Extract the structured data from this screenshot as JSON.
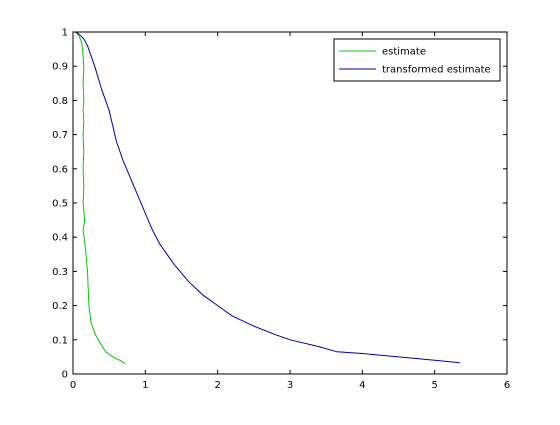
{
  "chart_data": {
    "type": "line",
    "title": "",
    "xlabel": "",
    "ylabel": "",
    "xlim": [
      0,
      6
    ],
    "ylim": [
      0,
      1
    ],
    "x_ticks": [
      0,
      1,
      2,
      3,
      4,
      5,
      6
    ],
    "x_tick_labels": [
      "0",
      "1",
      "2",
      "3",
      "4",
      "5",
      "6"
    ],
    "y_ticks": [
      0,
      0.1,
      0.2,
      0.3,
      0.4,
      0.5,
      0.6,
      0.7,
      0.8,
      0.9,
      1
    ],
    "y_tick_labels": [
      "0",
      "0.1",
      "0.2",
      "0.3",
      "0.4",
      "0.5",
      "0.6",
      "0.7",
      "0.8",
      "0.9",
      "1"
    ],
    "grid": false,
    "legend_position": "top-right",
    "series": [
      {
        "name": "estimate",
        "color": "#00cc00",
        "points": [
          [
            0.03,
            1.0
          ],
          [
            0.08,
            0.99
          ],
          [
            0.12,
            0.97
          ],
          [
            0.14,
            0.93
          ],
          [
            0.15,
            0.9
          ],
          [
            0.14,
            0.85
          ],
          [
            0.15,
            0.8
          ],
          [
            0.14,
            0.77
          ],
          [
            0.15,
            0.74
          ],
          [
            0.14,
            0.7
          ],
          [
            0.15,
            0.65
          ],
          [
            0.14,
            0.6
          ],
          [
            0.15,
            0.55
          ],
          [
            0.14,
            0.5
          ],
          [
            0.16,
            0.45
          ],
          [
            0.14,
            0.42
          ],
          [
            0.16,
            0.39
          ],
          [
            0.17,
            0.37
          ],
          [
            0.18,
            0.35
          ],
          [
            0.2,
            0.3
          ],
          [
            0.21,
            0.25
          ],
          [
            0.22,
            0.2
          ],
          [
            0.25,
            0.15
          ],
          [
            0.3,
            0.12
          ],
          [
            0.35,
            0.1
          ],
          [
            0.45,
            0.065
          ],
          [
            0.55,
            0.05
          ],
          [
            0.65,
            0.04
          ],
          [
            0.72,
            0.03
          ]
        ]
      },
      {
        "name": "transformed estimate",
        "color": "#0000aa",
        "points": [
          [
            0.05,
            1.0
          ],
          [
            0.1,
            0.99
          ],
          [
            0.15,
            0.98
          ],
          [
            0.2,
            0.96
          ],
          [
            0.3,
            0.9
          ],
          [
            0.4,
            0.83
          ],
          [
            0.5,
            0.77
          ],
          [
            0.6,
            0.68
          ],
          [
            0.7,
            0.62
          ],
          [
            0.8,
            0.57
          ],
          [
            0.9,
            0.52
          ],
          [
            1.0,
            0.47
          ],
          [
            1.1,
            0.42
          ],
          [
            1.2,
            0.38
          ],
          [
            1.3,
            0.35
          ],
          [
            1.4,
            0.32
          ],
          [
            1.6,
            0.27
          ],
          [
            1.8,
            0.23
          ],
          [
            2.0,
            0.2
          ],
          [
            2.2,
            0.17
          ],
          [
            2.5,
            0.14
          ],
          [
            2.8,
            0.115
          ],
          [
            3.0,
            0.1
          ],
          [
            3.4,
            0.08
          ],
          [
            3.65,
            0.065
          ],
          [
            4.0,
            0.06
          ],
          [
            4.5,
            0.05
          ],
          [
            5.0,
            0.04
          ],
          [
            5.35,
            0.033
          ]
        ]
      }
    ]
  }
}
